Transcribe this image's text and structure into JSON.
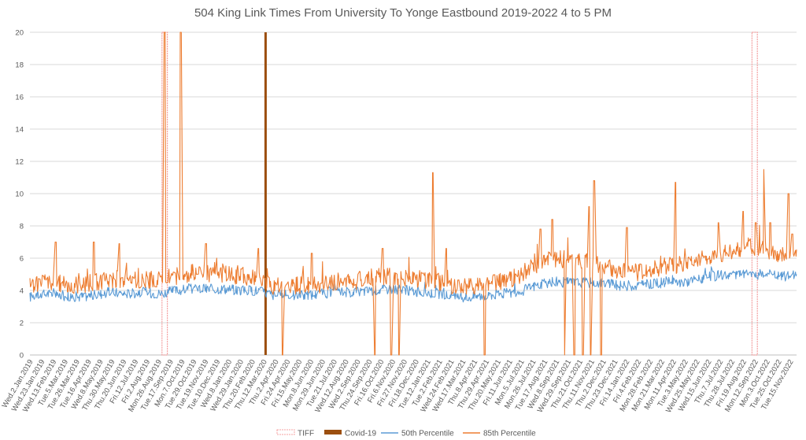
{
  "chart_data": {
    "type": "line",
    "title": "504 King Link Times From University To Yonge Eastbound 2019-2022 4 to 5 PM",
    "xlabel": "",
    "ylabel": "",
    "ylim": [
      0,
      20
    ],
    "yticks": [
      0,
      2,
      4,
      6,
      8,
      10,
      12,
      14,
      16,
      18,
      20
    ],
    "grid": true,
    "legend_position": "bottom",
    "x_start": "2019-01-02",
    "x_end": "2022-11-30",
    "x_tick_labels": [
      "Wed.2.Jan.2019",
      "Wed.23.Jan.2019",
      "Wed.13.Feb.2019",
      "Tue.5.Mar.2019",
      "Tue.26.Mar.2019",
      "Tue.16.Apr.2019",
      "Wed.8.May.2019",
      "Thu.30.May.2019",
      "Thu.20.Jun.2019",
      "Fri.12.Jul.2019",
      "Fri.2.Aug.2019",
      "Mon.26.Aug.2019",
      "Tue.17.Sep.2019",
      "Mon.7.Oct.2019",
      "Tue.29.Oct.2019",
      "Tue.19.Nov.2019",
      "Tue.10.Dec.2019",
      "Wed.8.Jan.2020",
      "Wed.29.Jan.2020",
      "Thu.20.Feb.2020",
      "Thu.12.Mar.2020",
      "Thu.2.Apr.2020",
      "Fri.24.Apr.2020",
      "Fri.15.May.2020",
      "Mon.8.Jun.2020",
      "Mon.29.Jun.2020",
      "Tue.21.Jul.2020",
      "Wed.12.Aug.2020",
      "Wed.2.Sep.2020",
      "Thu.24.Sep.2020",
      "Fri.16.Oct.2020",
      "Fri.6.Nov.2020",
      "Fri.27.Nov.2020",
      "Fri.18.Dec.2020",
      "Tue.12.Jan.2021",
      "Tue.2.Feb.2021",
      "Wed.24.Feb.2021",
      "Wed.17.Mar.2021",
      "Thu.8.Apr.2021",
      "Thu.29.Apr.2021",
      "Thu.20.May.2021",
      "Fri.11.Jun.2021",
      "Mon.5.Jul.2021",
      "Mon.26.Jul.2021",
      "Tue.17.Aug.2021",
      "Wed.8.Sep.2021",
      "Wed.29.Sep.2021",
      "Thu.21.Oct.2021",
      "Thu.11.Nov.2021",
      "Thu.2.Dec.2021",
      "Thu.23.Dec.2021",
      "Fri.14.Jan.2022",
      "Fri.4.Feb.2022",
      "Mon.28.Feb.2022",
      "Mon.21.Mar.2022",
      "Mon.11.Apr.2022",
      "Tue.3.May.2022",
      "Wed.25.May.2022",
      "Wed.15.Jun.2022",
      "Thu.7.Jul.2022",
      "Thu.28.Jul.2022",
      "Fri.19.Aug.2022",
      "Mon.12.Sep.2022",
      "Mon.3.Oct.2022",
      "Tue.25.Oct.2022",
      "Tue.15.Nov.2022"
    ],
    "series": [
      {
        "name": "TIFF",
        "kind": "band",
        "color": "#f4a0a0",
        "periods": [
          [
            "2019-09-05",
            "2019-09-15"
          ],
          [
            "2022-09-08",
            "2022-09-18"
          ]
        ]
      },
      {
        "name": "Covid-19",
        "kind": "bar",
        "color": "#9c4f0f",
        "date": "2020-03-16"
      },
      {
        "name": "50th Percentile",
        "kind": "line",
        "color": "#5b9bd5",
        "dates": [
          "2019-01-02",
          "2019-02-01",
          "2019-03-01",
          "2019-04-01",
          "2019-05-01",
          "2019-06-01",
          "2019-07-01",
          "2019-08-01",
          "2019-09-01",
          "2019-10-01",
          "2019-11-01",
          "2019-12-01",
          "2020-01-01",
          "2020-02-01",
          "2020-03-01",
          "2020-04-01",
          "2020-05-01",
          "2020-06-01",
          "2020-07-01",
          "2020-08-01",
          "2020-09-01",
          "2020-10-01",
          "2020-11-01",
          "2020-12-01",
          "2021-01-01",
          "2021-02-01",
          "2021-03-01",
          "2021-04-01",
          "2021-05-01",
          "2021-06-01",
          "2021-07-01",
          "2021-08-01",
          "2021-09-01",
          "2021-10-01",
          "2021-11-01",
          "2021-12-01",
          "2022-01-01",
          "2022-02-01",
          "2022-03-01",
          "2022-04-01",
          "2022-05-01",
          "2022-06-01",
          "2022-07-01",
          "2022-08-01",
          "2022-09-01",
          "2022-10-01",
          "2022-11-01",
          "2022-11-30"
        ],
        "values": [
          3.6,
          3.8,
          3.7,
          3.6,
          3.7,
          3.9,
          3.8,
          3.9,
          3.8,
          4.0,
          4.1,
          4.1,
          4.1,
          4.0,
          4.0,
          3.7,
          3.7,
          3.7,
          3.8,
          3.9,
          3.9,
          4.0,
          4.1,
          4.0,
          3.9,
          3.8,
          3.6,
          3.6,
          3.7,
          3.8,
          3.9,
          4.3,
          4.5,
          4.5,
          4.5,
          4.5,
          4.3,
          4.3,
          4.4,
          4.5,
          4.5,
          4.7,
          4.9,
          5.0,
          5.0,
          5.0,
          4.9,
          4.9
        ]
      },
      {
        "name": "85th Percentile",
        "kind": "line",
        "color": "#ed7d31",
        "dates": [
          "2019-01-02",
          "2019-02-01",
          "2019-03-01",
          "2019-04-01",
          "2019-05-01",
          "2019-06-01",
          "2019-07-01",
          "2019-08-01",
          "2019-09-01",
          "2019-10-01",
          "2019-11-01",
          "2019-12-01",
          "2020-01-01",
          "2020-02-01",
          "2020-03-01",
          "2020-04-01",
          "2020-05-01",
          "2020-06-01",
          "2020-07-01",
          "2020-08-01",
          "2020-09-01",
          "2020-10-01",
          "2020-11-01",
          "2020-12-01",
          "2021-01-01",
          "2021-02-01",
          "2021-03-01",
          "2021-04-01",
          "2021-05-01",
          "2021-06-01",
          "2021-07-01",
          "2021-08-01",
          "2021-09-01",
          "2021-10-01",
          "2021-11-01",
          "2021-12-01",
          "2022-01-01",
          "2022-02-01",
          "2022-03-01",
          "2022-04-01",
          "2022-05-01",
          "2022-06-01",
          "2022-07-01",
          "2022-08-01",
          "2022-09-01",
          "2022-10-01",
          "2022-11-01",
          "2022-11-30"
        ],
        "values": [
          4.3,
          4.6,
          4.4,
          4.3,
          4.5,
          4.7,
          4.6,
          4.7,
          4.6,
          4.9,
          5.1,
          5.0,
          5.0,
          4.9,
          4.8,
          4.2,
          4.3,
          4.3,
          4.4,
          4.6,
          4.6,
          4.8,
          4.9,
          4.8,
          4.7,
          4.5,
          4.3,
          4.2,
          4.4,
          4.6,
          4.8,
          5.6,
          6.0,
          5.9,
          5.8,
          5.6,
          5.2,
          5.1,
          5.3,
          5.5,
          5.6,
          5.9,
          6.2,
          6.5,
          6.7,
          6.5,
          6.2,
          6.0
        ],
        "spikes": [
          {
            "date": "2019-02-19",
            "value": 7.0
          },
          {
            "date": "2019-05-01",
            "value": 7.0
          },
          {
            "date": "2019-06-17",
            "value": 6.9
          },
          {
            "date": "2019-09-10",
            "value": 20
          },
          {
            "date": "2019-10-10",
            "value": 20
          },
          {
            "date": "2019-11-26",
            "value": 6.9
          },
          {
            "date": "2020-03-02",
            "value": 6.6
          },
          {
            "date": "2020-04-17",
            "value": 0
          },
          {
            "date": "2020-06-10",
            "value": 6.3
          },
          {
            "date": "2020-10-05",
            "value": 0
          },
          {
            "date": "2020-10-20",
            "value": 6.6
          },
          {
            "date": "2020-11-05",
            "value": 0
          },
          {
            "date": "2020-11-20",
            "value": 0
          },
          {
            "date": "2021-01-22",
            "value": 11.3
          },
          {
            "date": "2021-02-15",
            "value": 6.6
          },
          {
            "date": "2021-04-28",
            "value": 0
          },
          {
            "date": "2021-08-10",
            "value": 7.8
          },
          {
            "date": "2021-09-01",
            "value": 8.4
          },
          {
            "date": "2021-09-25",
            "value": 0
          },
          {
            "date": "2021-10-12",
            "value": 0
          },
          {
            "date": "2021-10-28",
            "value": 0
          },
          {
            "date": "2021-11-08",
            "value": 9.2
          },
          {
            "date": "2021-11-12",
            "value": 0
          },
          {
            "date": "2021-11-18",
            "value": 10.8
          },
          {
            "date": "2021-12-01",
            "value": 0
          },
          {
            "date": "2022-01-18",
            "value": 7.9
          },
          {
            "date": "2022-04-18",
            "value": 10.7
          },
          {
            "date": "2022-07-08",
            "value": 8.2
          },
          {
            "date": "2022-08-22",
            "value": 8.9
          },
          {
            "date": "2022-09-15",
            "value": 8.2
          },
          {
            "date": "2022-10-01",
            "value": 11.5
          },
          {
            "date": "2022-10-12",
            "value": 8.2
          },
          {
            "date": "2022-11-15",
            "value": 10.0
          },
          {
            "date": "2022-11-22",
            "value": 7.5
          }
        ]
      }
    ]
  }
}
